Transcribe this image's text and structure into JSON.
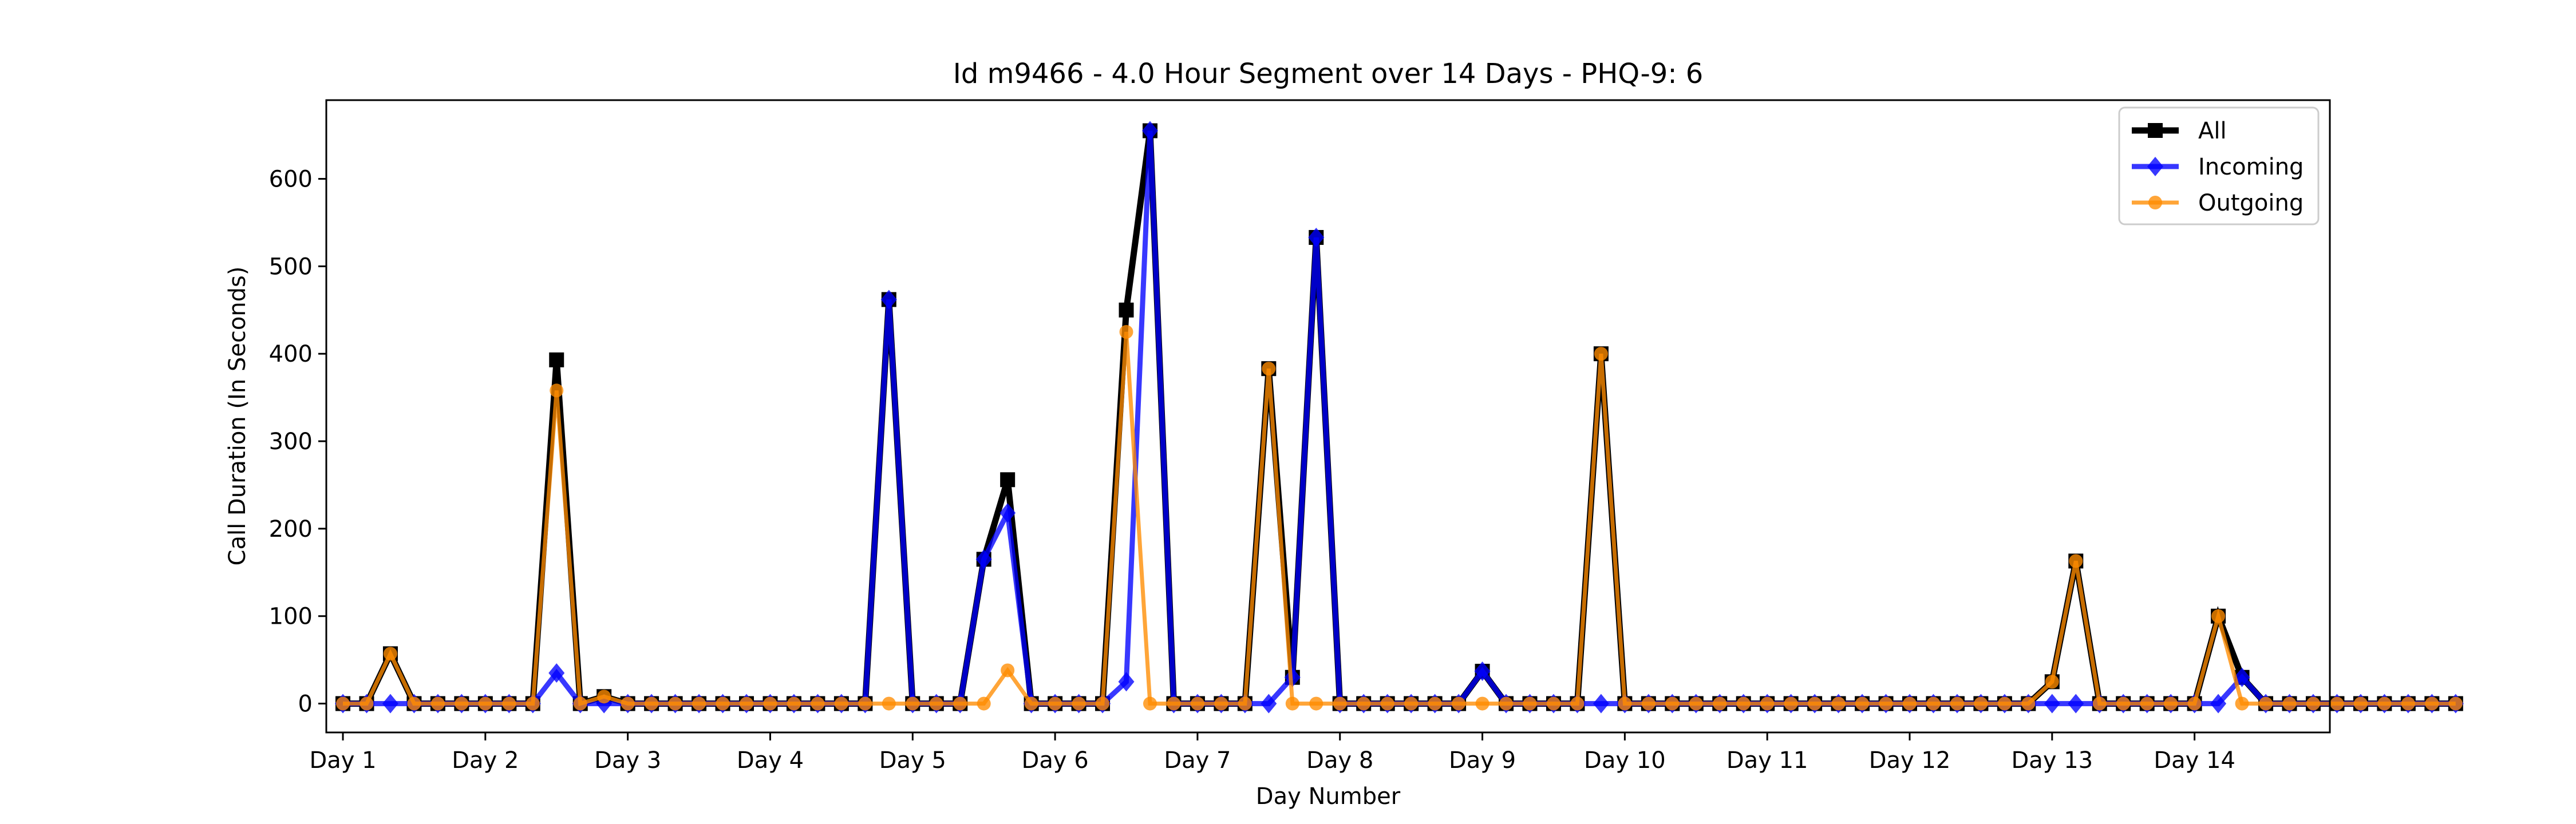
{
  "chart_data": {
    "type": "line",
    "title": "Id m9466 - 4.0 Hour Segment over 14 Days - PHQ-9: 6",
    "xlabel": "Day Number",
    "ylabel": "Call Duration (In Seconds)",
    "xlim": [
      -0.7,
      83.7
    ],
    "ylim": [
      -33,
      690
    ],
    "yticks": [
      0,
      100,
      200,
      300,
      400,
      500,
      600
    ],
    "xticks": [
      {
        "pos": 0,
        "label": "Day 1"
      },
      {
        "pos": 6,
        "label": "Day 2"
      },
      {
        "pos": 12,
        "label": "Day 3"
      },
      {
        "pos": 18,
        "label": "Day 4"
      },
      {
        "pos": 24,
        "label": "Day 5"
      },
      {
        "pos": 30,
        "label": "Day 6"
      },
      {
        "pos": 36,
        "label": "Day 7"
      },
      {
        "pos": 42,
        "label": "Day 8"
      },
      {
        "pos": 48,
        "label": "Day 9"
      },
      {
        "pos": 54,
        "label": "Day 10"
      },
      {
        "pos": 60,
        "label": "Day 11"
      },
      {
        "pos": 66,
        "label": "Day 12"
      },
      {
        "pos": 72,
        "label": "Day 13"
      },
      {
        "pos": 78,
        "label": "Day 14"
      }
    ],
    "legend_position": "top-right",
    "series": [
      {
        "name": "All",
        "color": "#000000",
        "marker": "square",
        "values": [
          0,
          0,
          57,
          0,
          0,
          0,
          0,
          0,
          0,
          393,
          0,
          8,
          0,
          0,
          0,
          0,
          0,
          0,
          0,
          0,
          0,
          0,
          0,
          462,
          0,
          0,
          0,
          165,
          256,
          0,
          0,
          0,
          0,
          450,
          655,
          0,
          0,
          0,
          0,
          383,
          30,
          533,
          0,
          0,
          0,
          0,
          0,
          0,
          37,
          0,
          0,
          0,
          0,
          400,
          0,
          0,
          0,
          0,
          0,
          0,
          0,
          0,
          0,
          0,
          0,
          0,
          0,
          0,
          0,
          0,
          0,
          0,
          25,
          163,
          0,
          0,
          0,
          0,
          0,
          100,
          30,
          0,
          0,
          0,
          0,
          0,
          0,
          0,
          0,
          0
        ]
      },
      {
        "name": "Incoming",
        "color": "#0000ff",
        "marker": "diamond",
        "values": [
          0,
          0,
          0,
          0,
          0,
          0,
          0,
          0,
          0,
          35,
          0,
          0,
          0,
          0,
          0,
          0,
          0,
          0,
          0,
          0,
          0,
          0,
          0,
          462,
          0,
          0,
          0,
          165,
          218,
          0,
          0,
          0,
          0,
          25,
          655,
          0,
          0,
          0,
          0,
          0,
          30,
          533,
          0,
          0,
          0,
          0,
          0,
          0,
          37,
          0,
          0,
          0,
          0,
          0,
          0,
          0,
          0,
          0,
          0,
          0,
          0,
          0,
          0,
          0,
          0,
          0,
          0,
          0,
          0,
          0,
          0,
          0,
          0,
          0,
          0,
          0,
          0,
          0,
          0,
          0,
          30,
          0,
          0,
          0,
          0,
          0,
          0,
          0,
          0,
          0
        ]
      },
      {
        "name": "Outgoing",
        "color": "#ff8c00",
        "marker": "circle",
        "values": [
          0,
          0,
          57,
          0,
          0,
          0,
          0,
          0,
          0,
          358,
          0,
          8,
          0,
          0,
          0,
          0,
          0,
          0,
          0,
          0,
          0,
          0,
          0,
          0,
          0,
          0,
          0,
          0,
          38,
          0,
          0,
          0,
          0,
          425,
          0,
          0,
          0,
          0,
          0,
          383,
          0,
          0,
          0,
          0,
          0,
          0,
          0,
          0,
          0,
          0,
          0,
          0,
          0,
          400,
          0,
          0,
          0,
          0,
          0,
          0,
          0,
          0,
          0,
          0,
          0,
          0,
          0,
          0,
          0,
          0,
          0,
          0,
          25,
          163,
          0,
          0,
          0,
          0,
          0,
          100,
          0,
          0,
          0,
          0,
          0,
          0,
          0,
          0,
          0,
          0
        ]
      }
    ]
  }
}
